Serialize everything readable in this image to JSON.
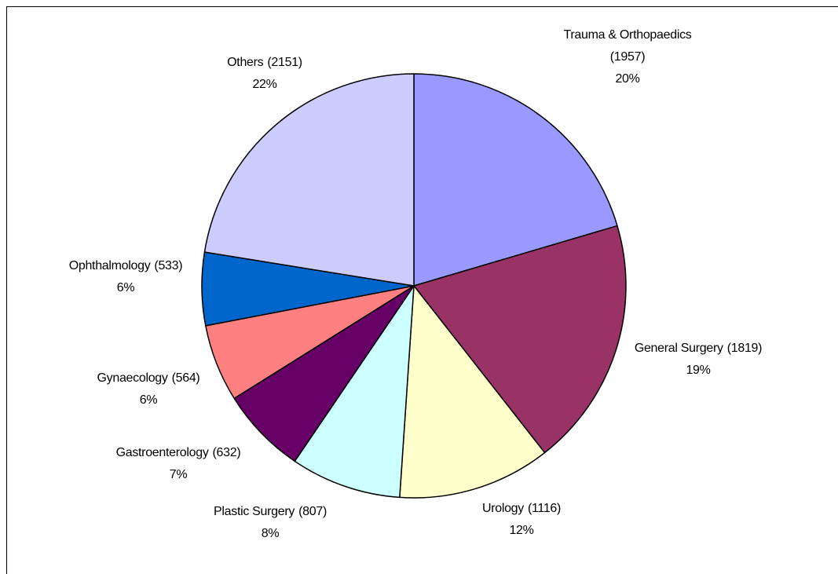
{
  "chart_data": {
    "type": "pie",
    "categories": [
      "Trauma & Orthopaedics",
      "General Surgery",
      "Urology",
      "Plastic Surgery",
      "Gastroenterology",
      "Gynaecology",
      "Ophthalmology",
      "Others"
    ],
    "values": [
      1957,
      1819,
      1116,
      807,
      632,
      564,
      533,
      2151
    ],
    "value_labels": [
      "(1957)",
      "(1819)",
      "(1116)",
      "(807)",
      "(632)",
      "(564)",
      "(533)",
      "(2151)"
    ],
    "percent_labels": [
      "20%",
      "19%",
      "12%",
      "8%",
      "7%",
      "6%",
      "6%",
      "22%"
    ],
    "colors": [
      "#9999ff",
      "#993366",
      "#ffffcc",
      "#ccffff",
      "#660066",
      "#ff8080",
      "#0066cc",
      "#ccccff"
    ]
  }
}
